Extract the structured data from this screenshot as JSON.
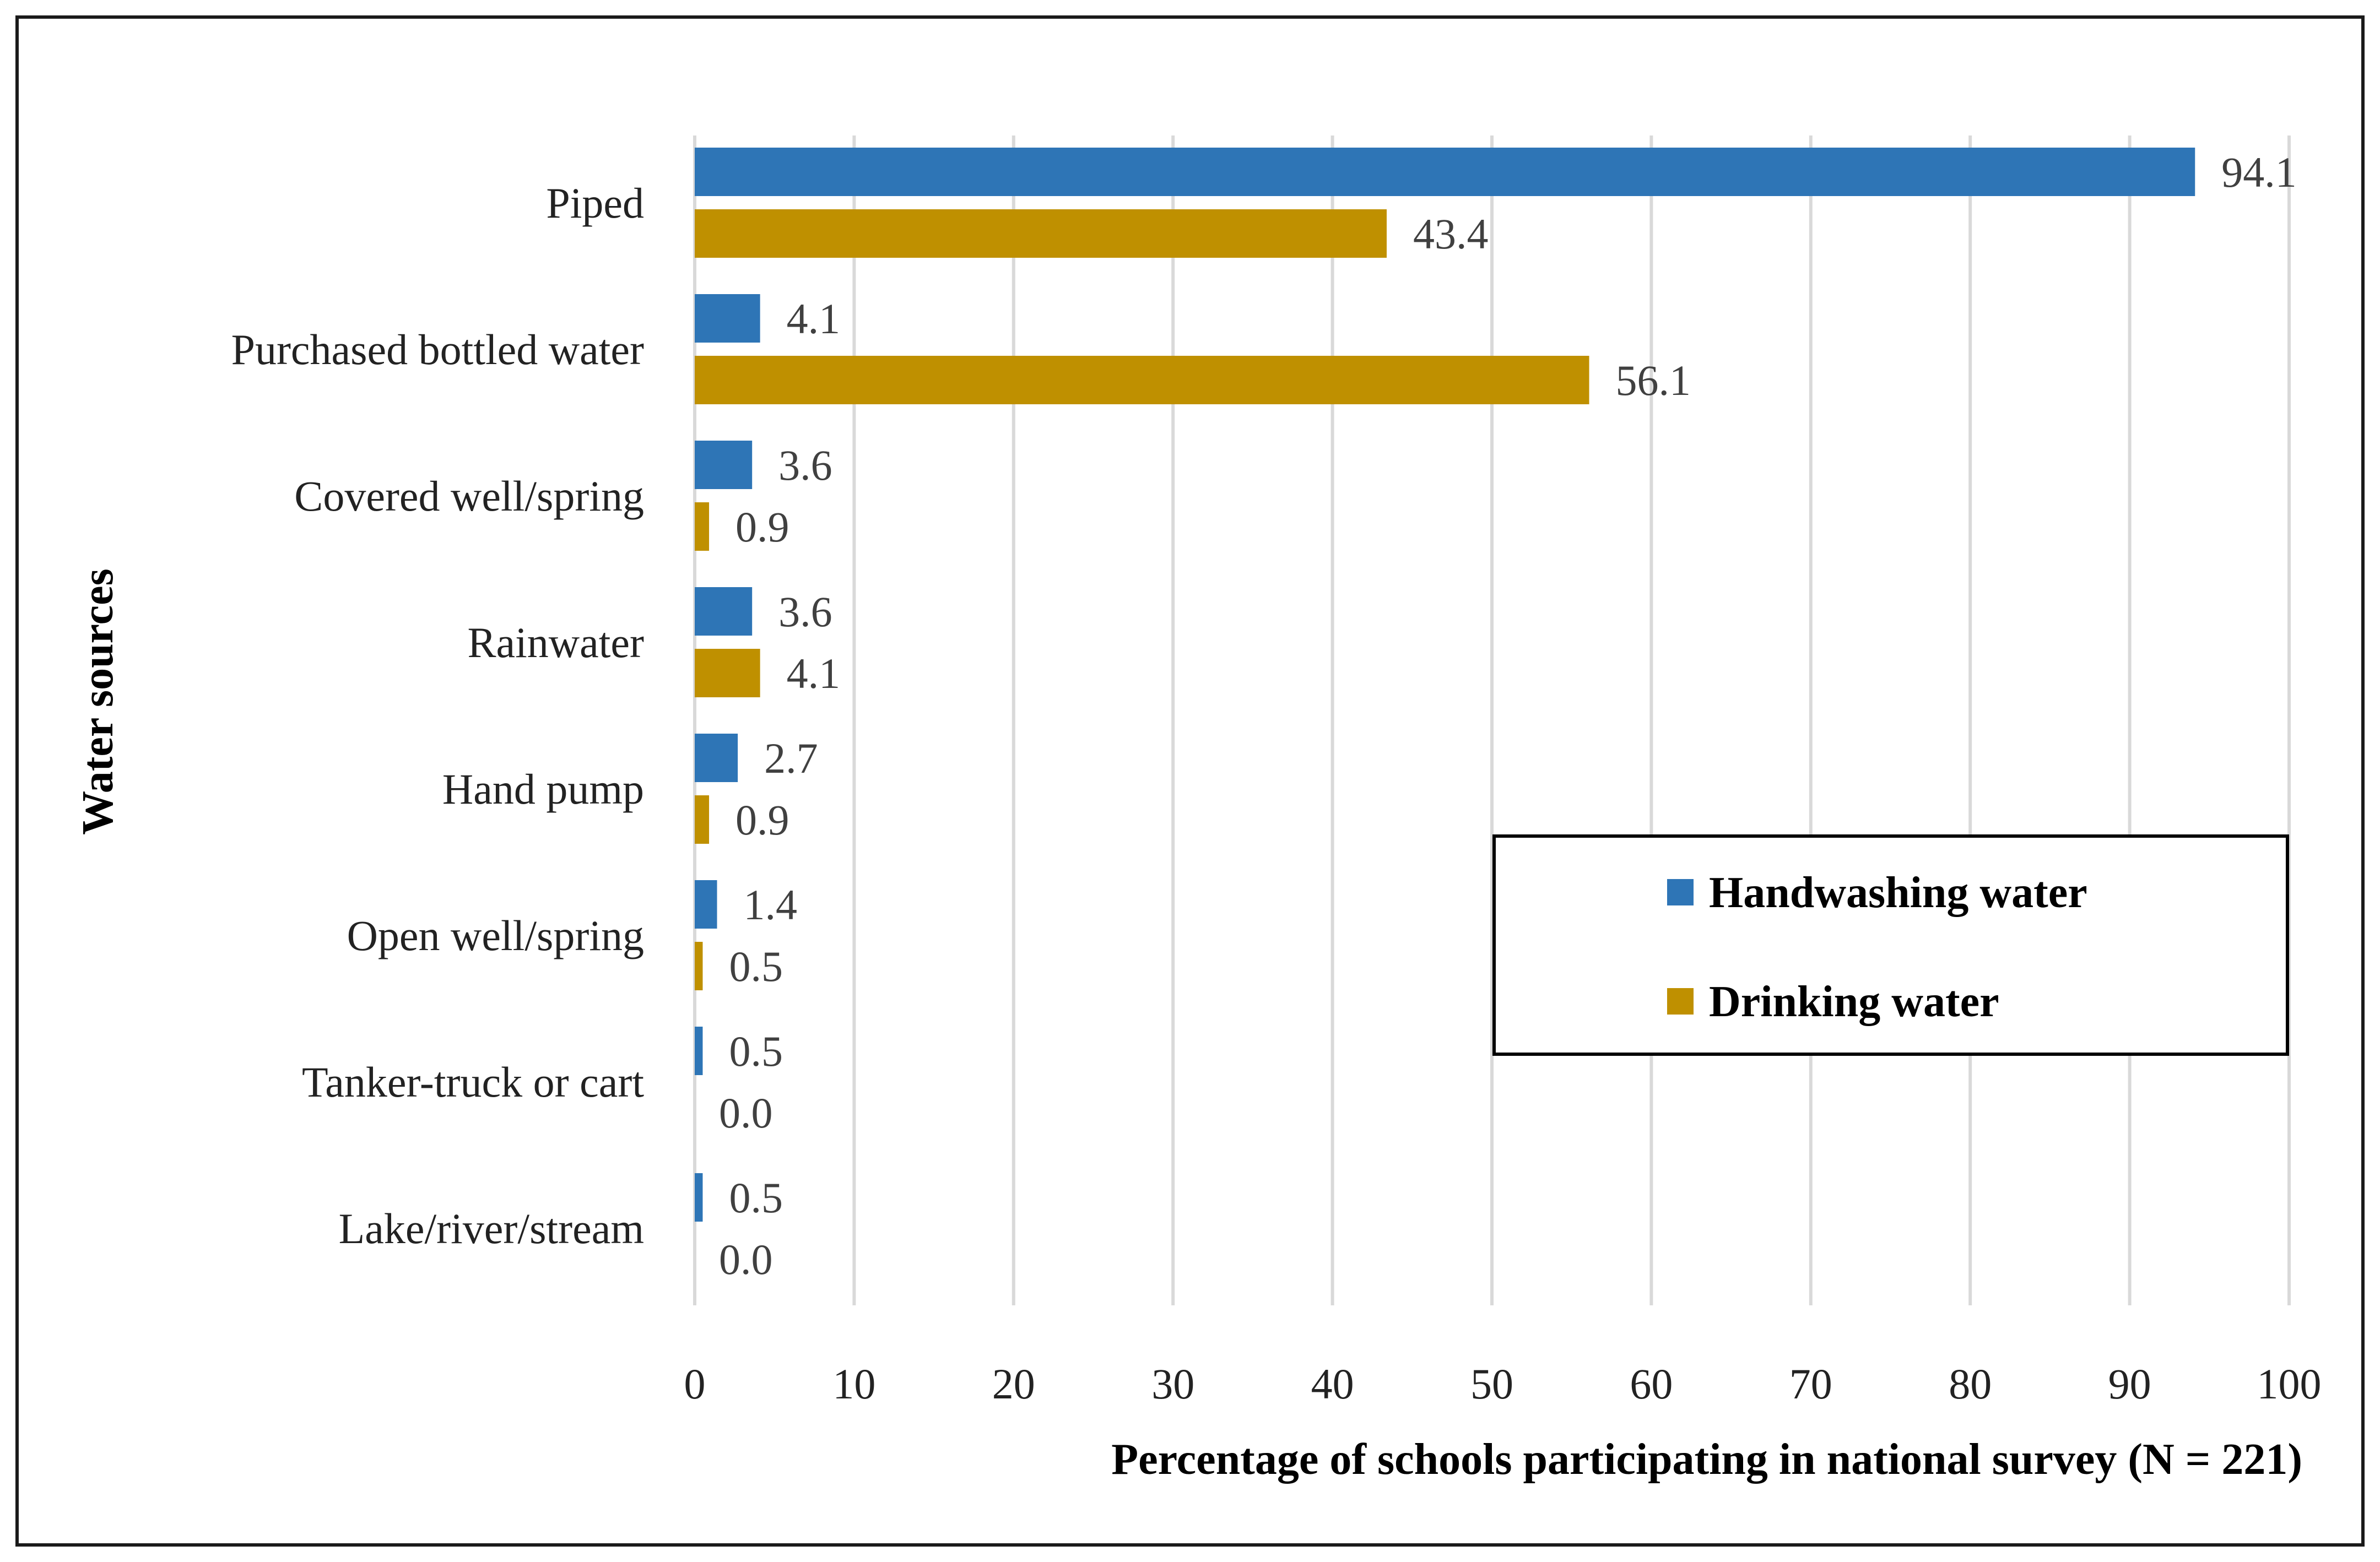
{
  "chart_data": {
    "type": "bar",
    "orientation": "horizontal",
    "categories": [
      "Piped",
      "Purchased bottled water",
      "Covered well/spring",
      "Rainwater",
      "Hand pump",
      "Open well/spring",
      "Tanker-truck or cart",
      "Lake/river/stream"
    ],
    "series": [
      {
        "name": "Handwashing water",
        "color": "#2e75b6",
        "values": [
          94.1,
          4.1,
          3.6,
          3.6,
          2.7,
          1.4,
          0.5,
          0.5
        ]
      },
      {
        "name": "Drinking water",
        "color": "#bf9000",
        "values": [
          43.4,
          56.1,
          0.9,
          4.1,
          0.9,
          0.5,
          0.0,
          0.0
        ]
      }
    ],
    "xlabel": "Percentage of schools participating in national survey (N = 221)",
    "ylabel": "Water sources",
    "xlim": [
      0,
      100
    ],
    "xticks": [
      0,
      10,
      20,
      30,
      40,
      50,
      60,
      70,
      80,
      90,
      100
    ],
    "grid": true,
    "legend": "center-right"
  }
}
